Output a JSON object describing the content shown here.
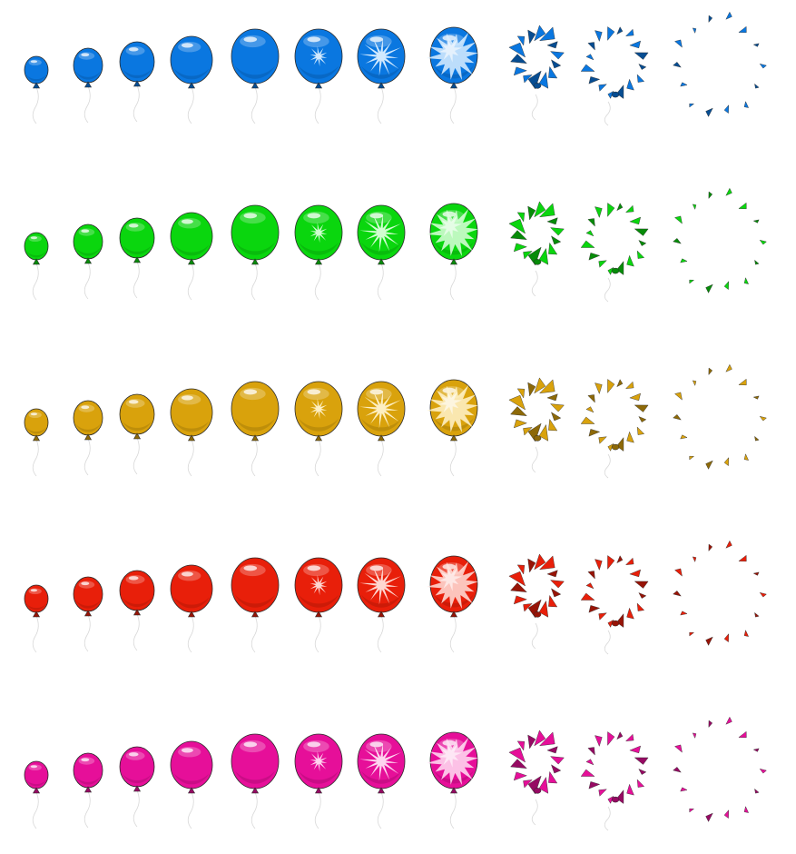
{
  "sheet": {
    "background": "#ffffff",
    "outline_color": "#2a2a2a",
    "string_color": "#d8d8d8",
    "frames_per_row": 11,
    "frame_stages": [
      "inflate-1",
      "inflate-2",
      "inflate-3",
      "inflate-4",
      "inflate-5",
      "pop-spark-small",
      "pop-spark-large",
      "pop-burst",
      "shatter-1",
      "shatter-2",
      "shatter-3"
    ],
    "rows": [
      {
        "name": "blue",
        "color": "#0a77e0",
        "highlight": "#dcefff"
      },
      {
        "name": "green",
        "color": "#0ad60e",
        "highlight": "#dcffdc"
      },
      {
        "name": "yellow",
        "color": "#d9a20c",
        "highlight": "#fff3cc"
      },
      {
        "name": "red",
        "color": "#e81f0a",
        "highlight": "#ffe2dc"
      },
      {
        "name": "pink",
        "color": "#e60f99",
        "highlight": "#ffe0f3"
      }
    ]
  }
}
